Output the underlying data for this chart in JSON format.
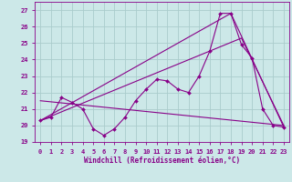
{
  "xlabel": "Windchill (Refroidissement éolien,°C)",
  "background_color": "#cce8e8",
  "line_color": "#880088",
  "xlim": [
    -0.5,
    23.5
  ],
  "ylim": [
    19,
    27.5
  ],
  "yticks": [
    19,
    20,
    21,
    22,
    23,
    24,
    25,
    26,
    27
  ],
  "xticks": [
    0,
    1,
    2,
    3,
    4,
    5,
    6,
    7,
    8,
    9,
    10,
    11,
    12,
    13,
    14,
    15,
    16,
    17,
    18,
    19,
    20,
    21,
    22,
    23
  ],
  "series1_x": [
    0,
    1,
    2,
    3,
    4,
    5,
    6,
    7,
    8,
    9,
    10,
    11,
    12,
    13,
    14,
    15,
    16,
    17,
    18,
    19,
    20,
    21,
    22,
    23
  ],
  "series1_y": [
    20.3,
    20.5,
    21.7,
    21.4,
    21.0,
    19.8,
    19.4,
    19.8,
    20.5,
    21.5,
    22.2,
    22.8,
    22.7,
    22.2,
    22.0,
    23.0,
    24.5,
    26.8,
    26.8,
    24.9,
    24.1,
    21.0,
    20.0,
    19.9
  ],
  "series2_x": [
    0,
    23
  ],
  "series2_y": [
    21.5,
    20.0
  ],
  "series3_x": [
    0,
    18,
    23
  ],
  "series3_y": [
    20.3,
    26.8,
    19.9
  ],
  "series4_x": [
    0,
    19,
    23
  ],
  "series4_y": [
    20.3,
    25.3,
    20.0
  ],
  "grid_color": "#aacccc"
}
